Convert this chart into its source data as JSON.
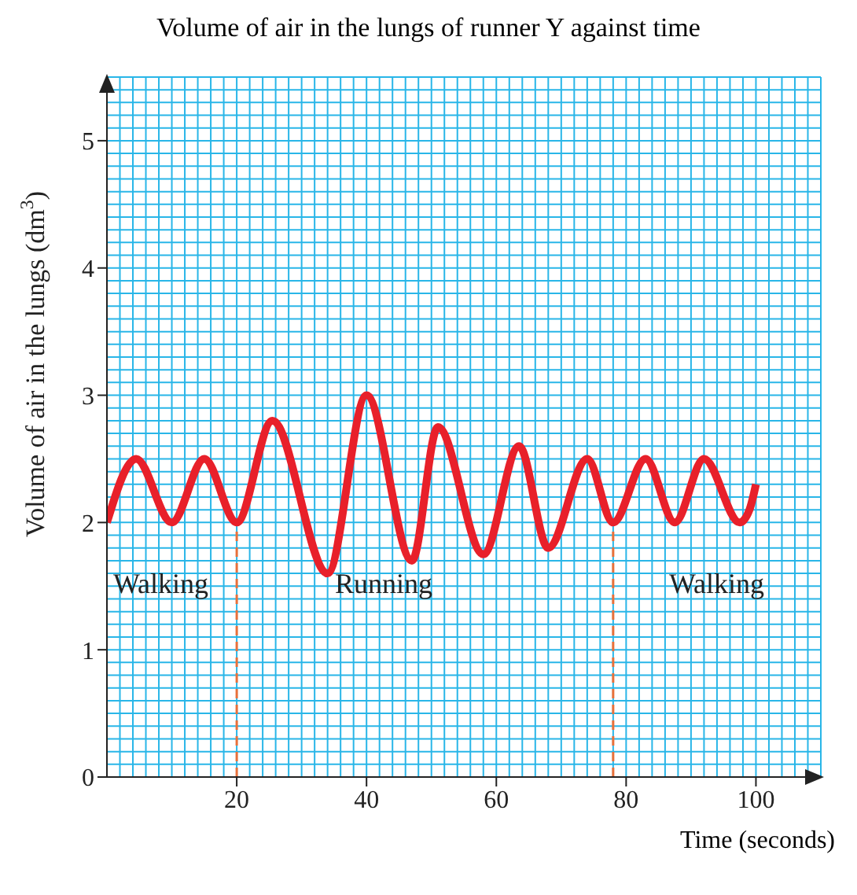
{
  "chart_data": {
    "type": "line",
    "title": "Volume of air in the lungs of runner Y against time",
    "xlabel": "Time (seconds)",
    "ylabel": "Volume of air in the lungs (dm$^{3}$)",
    "series": [
      {
        "color": "#e8202a",
        "x": [
          0,
          4.5,
          10,
          15,
          20,
          25.5,
          34,
          40,
          47,
          51,
          58,
          63.5,
          68,
          74,
          78,
          83,
          87.5,
          92,
          97.5,
          99,
          100
        ],
        "values": [
          2,
          2.5,
          2,
          2.5,
          2,
          2.8,
          1.6,
          3,
          1.7,
          2.75,
          1.75,
          2.6,
          1.8,
          2.5,
          2,
          2.5,
          2,
          2.5,
          2,
          2.1,
          2.3
        ]
      }
    ],
    "xlim": [
      0,
      110
    ],
    "xticks": [
      20,
      40,
      60,
      80,
      100
    ],
    "ylim": [
      0,
      5.5
    ],
    "yticks": [
      0,
      1,
      2,
      3,
      4,
      5
    ],
    "grid": true,
    "marker": "none",
    "line_style": "solid",
    "ref_lines": [
      {
        "axis": "x",
        "value": 20,
        "color": "#e8703a",
        "line_style": "dashed"
      },
      {
        "axis": "x",
        "value": 78,
        "color": "#e8703a",
        "line_style": "dashed"
      }
    ],
    "annotations": [
      "Walking",
      "Running",
      "Walking"
    ]
  }
}
